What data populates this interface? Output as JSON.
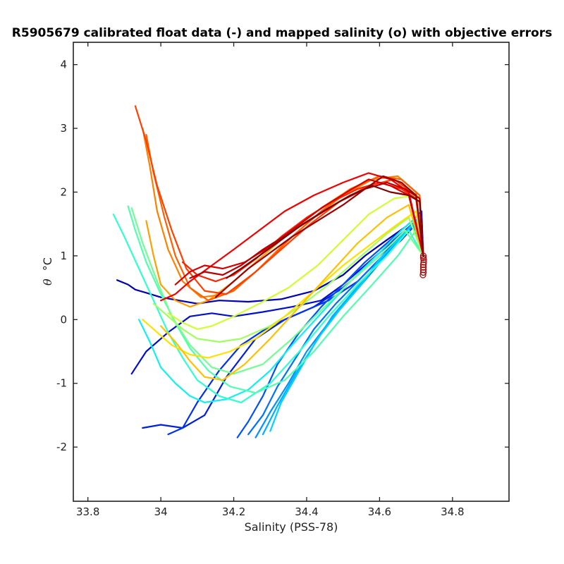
{
  "chart_data": {
    "type": "line",
    "title": "R5905679 calibrated float data (-) and mapped salinity (o) with objective errors",
    "xlabel": "Salinity (PSS-78)",
    "ylabel_symbol": "θ",
    "ylabel_rest": "°C",
    "xlim": [
      33.76,
      34.955
    ],
    "ylim": [
      -2.85,
      4.35
    ],
    "xticks": [
      33.8,
      34,
      34.2,
      34.4,
      34.6,
      34.8
    ],
    "xtick_labels": [
      "33.8",
      "34",
      "34.2",
      "34.4",
      "34.6",
      "34.8"
    ],
    "yticks": [
      -2,
      -1,
      0,
      1,
      2,
      3,
      4
    ],
    "ytick_labels": [
      "-2",
      "-1",
      "0",
      "1",
      "2",
      "3",
      "4"
    ],
    "grid": false,
    "colormap": "jet",
    "mapped_points": {
      "color": "#a01010",
      "x": [
        34.72,
        34.72,
        34.721,
        34.721,
        34.72,
        34.72,
        34.72,
        34.72,
        34.719
      ],
      "y": [
        1.0,
        0.97,
        0.94,
        0.9,
        0.86,
        0.82,
        0.78,
        0.74,
        0.7
      ]
    },
    "series": [
      {
        "color": "#0000b4",
        "x": [
          33.88,
          33.91,
          33.93,
          33.96,
          34.0,
          34.05,
          34.1,
          34.16,
          34.24,
          34.33,
          34.42,
          34.5,
          34.56,
          34.62,
          34.67,
          34.7,
          34.715,
          34.72
        ],
        "y": [
          0.62,
          0.55,
          0.47,
          0.42,
          0.35,
          0.3,
          0.25,
          0.3,
          0.28,
          0.32,
          0.45,
          0.7,
          1.0,
          1.25,
          1.45,
          1.6,
          1.7,
          1.0
        ]
      },
      {
        "color": "#0010c8",
        "x": [
          33.92,
          33.96,
          34.02,
          34.08,
          34.14,
          34.2,
          34.28,
          34.36,
          34.44,
          34.5,
          34.57,
          34.63,
          34.68,
          34.71,
          34.72
        ],
        "y": [
          -0.85,
          -0.5,
          -0.2,
          0.05,
          0.1,
          0.05,
          0.12,
          0.2,
          0.3,
          0.55,
          0.9,
          1.2,
          1.45,
          1.6,
          1.0
        ]
      },
      {
        "color": "#0020dc",
        "x": [
          33.95,
          34.0,
          34.06,
          34.12,
          34.18,
          34.26,
          34.34,
          34.42,
          34.5,
          34.58,
          34.64,
          34.69,
          34.72
        ],
        "y": [
          -1.7,
          -1.65,
          -1.7,
          -1.5,
          -0.9,
          -0.3,
          0.0,
          0.2,
          0.5,
          0.9,
          1.2,
          1.5,
          1.0
        ]
      },
      {
        "color": "#0030f0",
        "x": [
          34.02,
          34.06,
          34.1,
          34.16,
          34.22,
          34.3,
          34.38,
          34.46,
          34.54,
          34.6,
          34.66,
          34.7,
          34.72
        ],
        "y": [
          -1.8,
          -1.7,
          -1.3,
          -0.8,
          -0.4,
          -0.1,
          0.1,
          0.3,
          0.6,
          0.95,
          1.25,
          1.5,
          1.0
        ]
      },
      {
        "color": "#0050ff",
        "x": [
          34.21,
          34.24,
          34.28,
          34.32,
          34.38,
          34.44,
          34.5,
          34.56,
          34.62,
          34.67,
          34.71,
          34.72
        ],
        "y": [
          -1.85,
          -1.6,
          -1.2,
          -0.7,
          -0.2,
          0.2,
          0.55,
          0.9,
          1.2,
          1.45,
          1.65,
          1.0
        ]
      },
      {
        "color": "#0070ff",
        "x": [
          34.24,
          34.28,
          34.32,
          34.37,
          34.42,
          34.48,
          34.54,
          34.6,
          34.65,
          34.7,
          34.72
        ],
        "y": [
          -1.8,
          -1.5,
          -1.05,
          -0.6,
          -0.15,
          0.25,
          0.6,
          0.95,
          1.25,
          1.55,
          1.0
        ]
      },
      {
        "color": "#0090ff",
        "x": [
          34.26,
          34.3,
          34.35,
          34.4,
          34.46,
          34.52,
          34.58,
          34.63,
          34.68,
          34.71,
          34.72
        ],
        "y": [
          -1.85,
          -1.45,
          -1.0,
          -0.5,
          -0.05,
          0.35,
          0.75,
          1.1,
          1.4,
          1.6,
          1.0
        ]
      },
      {
        "color": "#00b0ff",
        "x": [
          34.28,
          34.32,
          34.37,
          34.42,
          34.47,
          34.53,
          34.59,
          34.64,
          34.69,
          34.72
        ],
        "y": [
          -1.8,
          -1.35,
          -0.85,
          -0.4,
          0.05,
          0.45,
          0.85,
          1.2,
          1.5,
          1.0
        ]
      },
      {
        "color": "#00d0ff",
        "x": [
          34.3,
          34.33,
          34.38,
          34.43,
          34.49,
          34.55,
          34.6,
          34.66,
          34.7,
          34.72
        ],
        "y": [
          -1.75,
          -1.3,
          -0.8,
          -0.3,
          0.15,
          0.55,
          0.95,
          1.3,
          1.55,
          1.0
        ]
      },
      {
        "color": "#10f0f0",
        "x": [
          33.94,
          33.97,
          34.0,
          34.04,
          34.08,
          34.12,
          34.18,
          34.24,
          34.3,
          34.36,
          34.44,
          34.52,
          34.6,
          34.66,
          34.71,
          34.72
        ],
        "y": [
          0.0,
          -0.35,
          -0.75,
          -1.0,
          -1.2,
          -1.3,
          -1.25,
          -1.1,
          -0.8,
          -0.4,
          0.1,
          0.6,
          1.05,
          1.4,
          1.65,
          1.0
        ]
      },
      {
        "color": "#30ffd0",
        "x": [
          33.87,
          33.9,
          33.94,
          33.98,
          34.02,
          34.06,
          34.1,
          34.16,
          34.22,
          34.3,
          34.38,
          34.46,
          34.54,
          34.62,
          34.68,
          34.72
        ],
        "y": [
          1.65,
          1.3,
          0.8,
          0.3,
          -0.2,
          -0.6,
          -0.95,
          -1.2,
          -1.3,
          -1.0,
          -0.5,
          0.05,
          0.55,
          1.0,
          1.4,
          1.0
        ]
      },
      {
        "color": "#50ffb0",
        "x": [
          33.91,
          33.93,
          33.96,
          34.0,
          34.04,
          34.08,
          34.13,
          34.19,
          34.26,
          34.34,
          34.42,
          34.5,
          34.58,
          34.65,
          34.7,
          34.72
        ],
        "y": [
          1.78,
          1.4,
          0.9,
          0.4,
          -0.05,
          -0.45,
          -0.8,
          -1.05,
          -1.15,
          -0.95,
          -0.5,
          0.05,
          0.55,
          1.0,
          1.4,
          1.0
        ]
      },
      {
        "color": "#70ff90",
        "x": [
          33.92,
          33.95,
          33.99,
          34.03,
          34.08,
          34.14,
          34.2,
          34.28,
          34.36,
          34.44,
          34.52,
          34.6,
          34.67,
          34.72
        ],
        "y": [
          1.75,
          1.2,
          0.6,
          0.05,
          -0.4,
          -0.75,
          -0.85,
          -0.7,
          -0.3,
          0.15,
          0.6,
          1.0,
          1.4,
          1.0
        ]
      },
      {
        "color": "#a0ff60",
        "x": [
          33.98,
          34.02,
          34.06,
          34.1,
          34.16,
          34.22,
          34.3,
          34.38,
          34.46,
          34.54,
          34.62,
          34.68,
          34.72
        ],
        "y": [
          0.25,
          0.05,
          -0.15,
          -0.3,
          -0.35,
          -0.3,
          -0.1,
          0.2,
          0.55,
          0.95,
          1.35,
          1.6,
          1.0
        ]
      },
      {
        "color": "#d0ff30",
        "x": [
          34.02,
          34.06,
          34.1,
          34.14,
          34.2,
          34.27,
          34.35,
          34.43,
          34.5,
          34.57,
          34.64,
          34.7,
          34.72
        ],
        "y": [
          0.1,
          -0.05,
          -0.15,
          -0.1,
          0.05,
          0.25,
          0.5,
          0.85,
          1.25,
          1.65,
          1.9,
          1.95,
          1.0
        ]
      },
      {
        "color": "#ffe000",
        "x": [
          33.95,
          33.99,
          34.03,
          34.08,
          34.13,
          34.19,
          34.26,
          34.34,
          34.42,
          34.5,
          34.58,
          34.65,
          34.7,
          34.72
        ],
        "y": [
          0.0,
          -0.2,
          -0.4,
          -0.55,
          -0.6,
          -0.5,
          -0.3,
          0.05,
          0.45,
          0.85,
          1.2,
          1.5,
          1.7,
          1.0
        ]
      },
      {
        "color": "#ffc000",
        "x": [
          34.0,
          34.04,
          34.08,
          34.12,
          34.17,
          34.23,
          34.3,
          34.38,
          34.46,
          34.54,
          34.62,
          34.68,
          34.72
        ],
        "y": [
          -0.1,
          -0.35,
          -0.65,
          -0.9,
          -0.95,
          -0.7,
          -0.3,
          0.2,
          0.7,
          1.2,
          1.6,
          1.8,
          1.0
        ]
      },
      {
        "color": "#ffa000",
        "x": [
          33.96,
          33.98,
          34.0,
          34.04,
          34.08,
          34.13,
          34.2,
          34.28,
          34.36,
          34.44,
          34.52,
          34.6,
          34.66,
          34.71,
          34.72
        ],
        "y": [
          1.55,
          1.0,
          0.55,
          0.3,
          0.2,
          0.3,
          0.6,
          1.0,
          1.4,
          1.75,
          2.05,
          2.25,
          2.15,
          1.9,
          1.0
        ]
      },
      {
        "color": "#ff8000",
        "x": [
          33.95,
          33.97,
          33.99,
          34.02,
          34.06,
          34.11,
          34.18,
          34.26,
          34.34,
          34.42,
          34.5,
          34.58,
          34.65,
          34.7,
          34.72
        ],
        "y": [
          3.0,
          2.4,
          1.7,
          1.1,
          0.6,
          0.35,
          0.4,
          0.75,
          1.2,
          1.6,
          1.95,
          2.2,
          2.25,
          2.0,
          1.0
        ]
      },
      {
        "color": "#ff6000",
        "x": [
          33.96,
          33.98,
          34.01,
          34.04,
          34.08,
          34.13,
          34.2,
          34.28,
          34.36,
          34.44,
          34.52,
          34.6,
          34.66,
          34.71,
          34.72
        ],
        "y": [
          2.9,
          2.3,
          1.6,
          1.0,
          0.5,
          0.3,
          0.45,
          0.85,
          1.3,
          1.7,
          2.05,
          2.25,
          2.2,
          1.95,
          1.0
        ]
      },
      {
        "color": "#ff4000",
        "x": [
          33.93,
          33.96,
          33.99,
          34.03,
          34.07,
          34.12,
          34.18,
          34.25,
          34.33,
          34.41,
          34.49,
          34.57,
          34.64,
          34.7,
          34.72
        ],
        "y": [
          3.35,
          2.8,
          2.1,
          1.4,
          0.8,
          0.45,
          0.4,
          0.7,
          1.1,
          1.5,
          1.85,
          2.1,
          2.2,
          1.95,
          1.0
        ]
      },
      {
        "color": "#ff2000",
        "x": [
          34.06,
          34.1,
          34.15,
          34.2,
          34.26,
          34.33,
          34.4,
          34.47,
          34.54,
          34.6,
          34.66,
          34.7,
          34.72
        ],
        "y": [
          0.9,
          0.7,
          0.6,
          0.7,
          0.95,
          1.3,
          1.6,
          1.85,
          2.05,
          2.15,
          2.05,
          1.9,
          1.0
        ]
      },
      {
        "color": "#f00000",
        "x": [
          34.0,
          34.04,
          34.08,
          34.14,
          34.2,
          34.27,
          34.34,
          34.42,
          34.5,
          34.57,
          34.63,
          34.68,
          34.72
        ],
        "y": [
          0.3,
          0.4,
          0.6,
          0.85,
          1.1,
          1.4,
          1.7,
          1.95,
          2.15,
          2.3,
          2.2,
          2.0,
          1.0
        ]
      },
      {
        "color": "#d40000",
        "x": [
          34.04,
          34.08,
          34.12,
          34.17,
          34.23,
          34.3,
          34.37,
          34.44,
          34.51,
          34.57,
          34.63,
          34.68,
          34.72
        ],
        "y": [
          0.55,
          0.75,
          0.85,
          0.8,
          0.9,
          1.15,
          1.45,
          1.75,
          2.0,
          2.2,
          2.1,
          1.95,
          1.0
        ]
      },
      {
        "color": "#b80000",
        "x": [
          34.08,
          34.12,
          34.17,
          34.22,
          34.28,
          34.35,
          34.42,
          34.49,
          34.56,
          34.62,
          34.67,
          34.71,
          34.72
        ],
        "y": [
          0.65,
          0.75,
          0.7,
          0.85,
          1.1,
          1.35,
          1.6,
          1.85,
          2.05,
          2.15,
          2.05,
          1.9,
          1.0
        ]
      },
      {
        "color": "#9c0000",
        "x": [
          34.15,
          34.19,
          34.24,
          34.3,
          34.36,
          34.43,
          34.5,
          34.56,
          34.61,
          34.66,
          34.7,
          34.72
        ],
        "y": [
          0.35,
          0.55,
          0.8,
          1.05,
          1.3,
          1.55,
          1.8,
          2.05,
          2.25,
          2.15,
          1.95,
          1.0
        ]
      },
      {
        "color": "#800000",
        "x": [
          34.18,
          34.22,
          34.27,
          34.33,
          34.39,
          34.46,
          34.52,
          34.58,
          34.63,
          34.68,
          34.71,
          34.72
        ],
        "y": [
          0.65,
          0.8,
          1.0,
          1.25,
          1.5,
          1.75,
          1.95,
          2.1,
          2.0,
          1.95,
          1.85,
          1.0
        ]
      }
    ]
  }
}
